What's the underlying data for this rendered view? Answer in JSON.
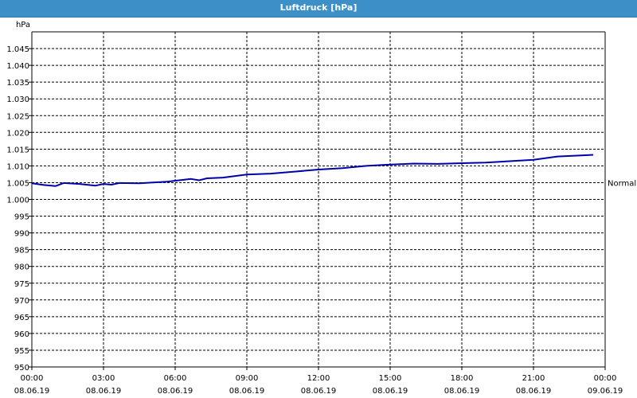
{
  "window": {
    "title": "Luftdruck [hPa]"
  },
  "chart_data": {
    "type": "line",
    "title": "Luftdruck [hPa]",
    "ylabel": "hPa",
    "ylim": [
      950,
      1050
    ],
    "yticks": [
      950,
      955,
      960,
      965,
      970,
      975,
      980,
      985,
      990,
      995,
      1000,
      1005,
      1010,
      1015,
      1020,
      1025,
      1030,
      1035,
      1040,
      1045
    ],
    "ytick_labels": [
      "950",
      "955",
      "960",
      "965",
      "970",
      "975",
      "980",
      "985",
      "990",
      "995",
      "1.000",
      "1.005",
      "1.010",
      "1.015",
      "1.020",
      "1.025",
      "1.030",
      "1.035",
      "1.040",
      "1.045"
    ],
    "xlim": [
      "08.06.19 00:00",
      "09.06.19 00:00"
    ],
    "xticks": [
      {
        "time": "00:00",
        "date": "08.06.19"
      },
      {
        "time": "03:00",
        "date": "08.06.19"
      },
      {
        "time": "06:00",
        "date": "08.06.19"
      },
      {
        "time": "09:00",
        "date": "08.06.19"
      },
      {
        "time": "12:00",
        "date": "08.06.19"
      },
      {
        "time": "15:00",
        "date": "08.06.19"
      },
      {
        "time": "18:00",
        "date": "08.06.19"
      },
      {
        "time": "21:00",
        "date": "08.06.19"
      },
      {
        "time": "00:00",
        "date": "09.06.19"
      }
    ],
    "grid": true,
    "reference_line": {
      "label": "Normal",
      "value": 1005
    },
    "series": [
      {
        "color": "#0000a8",
        "points": [
          {
            "x": "08.06.19 00:00",
            "y": 1004.8
          },
          {
            "x": "08.06.19 00:30",
            "y": 1004.3
          },
          {
            "x": "08.06.19 01:00",
            "y": 1004.0
          },
          {
            "x": "08.06.19 01:20",
            "y": 1004.9
          },
          {
            "x": "08.06.19 02:00",
            "y": 1004.6
          },
          {
            "x": "08.06.19 02:40",
            "y": 1004.1
          },
          {
            "x": "08.06.19 03:00",
            "y": 1004.6
          },
          {
            "x": "08.06.19 03:20",
            "y": 1004.4
          },
          {
            "x": "08.06.19 03:40",
            "y": 1004.9
          },
          {
            "x": "08.06.19 04:30",
            "y": 1004.8
          },
          {
            "x": "08.06.19 05:00",
            "y": 1005.0
          },
          {
            "x": "08.06.19 05:40",
            "y": 1005.3
          },
          {
            "x": "08.06.19 06:10",
            "y": 1005.7
          },
          {
            "x": "08.06.19 06:40",
            "y": 1006.1
          },
          {
            "x": "08.06.19 07:00",
            "y": 1005.7
          },
          {
            "x": "08.06.19 07:20",
            "y": 1006.3
          },
          {
            "x": "08.06.19 08:00",
            "y": 1006.5
          },
          {
            "x": "08.06.19 09:00",
            "y": 1007.4
          },
          {
            "x": "08.06.19 10:00",
            "y": 1007.7
          },
          {
            "x": "08.06.19 11:00",
            "y": 1008.3
          },
          {
            "x": "08.06.19 12:00",
            "y": 1008.9
          },
          {
            "x": "08.06.19 13:00",
            "y": 1009.3
          },
          {
            "x": "08.06.19 14:00",
            "y": 1010.0
          },
          {
            "x": "08.06.19 15:00",
            "y": 1010.4
          },
          {
            "x": "08.06.19 16:00",
            "y": 1010.7
          },
          {
            "x": "08.06.19 17:00",
            "y": 1010.6
          },
          {
            "x": "08.06.19 18:00",
            "y": 1010.8
          },
          {
            "x": "08.06.19 19:00",
            "y": 1011.0
          },
          {
            "x": "08.06.19 20:00",
            "y": 1011.4
          },
          {
            "x": "08.06.19 21:00",
            "y": 1011.8
          },
          {
            "x": "08.06.19 22:00",
            "y": 1012.8
          },
          {
            "x": "08.06.19 23:00",
            "y": 1013.1
          },
          {
            "x": "08.06.19 23:30",
            "y": 1013.3
          }
        ]
      }
    ]
  }
}
